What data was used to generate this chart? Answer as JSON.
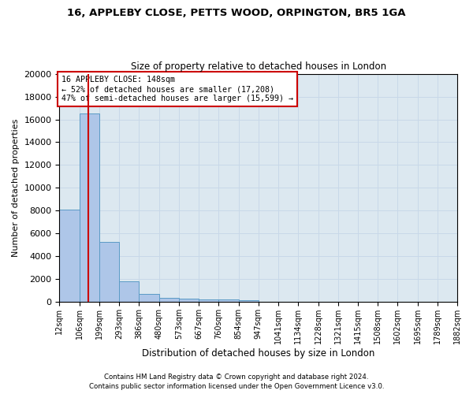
{
  "title1": "16, APPLEBY CLOSE, PETTS WOOD, ORPINGTON, BR5 1GA",
  "title2": "Size of property relative to detached houses in London",
  "xlabel": "Distribution of detached houses by size in London",
  "ylabel": "Number of detached properties",
  "footer1": "Contains HM Land Registry data © Crown copyright and database right 2024.",
  "footer2": "Contains public sector information licensed under the Open Government Licence v3.0.",
  "annotation_line1": "16 APPLEBY CLOSE: 148sqm",
  "annotation_line2": "← 52% of detached houses are smaller (17,208)",
  "annotation_line3": "47% of semi-detached houses are larger (15,599) →",
  "property_size": 148,
  "bar_color": "#aec6e8",
  "bar_edge_color": "#5a9bc5",
  "red_line_color": "#cc0000",
  "annotation_box_color": "#ffffff",
  "annotation_box_edge": "#cc0000",
  "background_color": "#ffffff",
  "grid_color": "#c8d8e8",
  "axes_bg_color": "#dce8f0",
  "bin_edges": [
    12,
    106,
    199,
    293,
    386,
    480,
    573,
    667,
    760,
    854,
    947,
    1041,
    1134,
    1228,
    1321,
    1415,
    1508,
    1602,
    1695,
    1789,
    1882
  ],
  "bin_labels": [
    "12sqm",
    "106sqm",
    "199sqm",
    "293sqm",
    "386sqm",
    "480sqm",
    "573sqm",
    "667sqm",
    "760sqm",
    "854sqm",
    "947sqm",
    "1041sqm",
    "1134sqm",
    "1228sqm",
    "1321sqm",
    "1415sqm",
    "1508sqm",
    "1602sqm",
    "1695sqm",
    "1789sqm",
    "1882sqm"
  ],
  "bar_heights": [
    8100,
    16500,
    5300,
    1850,
    700,
    380,
    290,
    230,
    210,
    190,
    0,
    0,
    0,
    0,
    0,
    0,
    0,
    0,
    0,
    0
  ],
  "ylim": [
    0,
    20000
  ],
  "yticks": [
    0,
    2000,
    4000,
    6000,
    8000,
    10000,
    12000,
    14000,
    16000,
    18000,
    20000
  ]
}
